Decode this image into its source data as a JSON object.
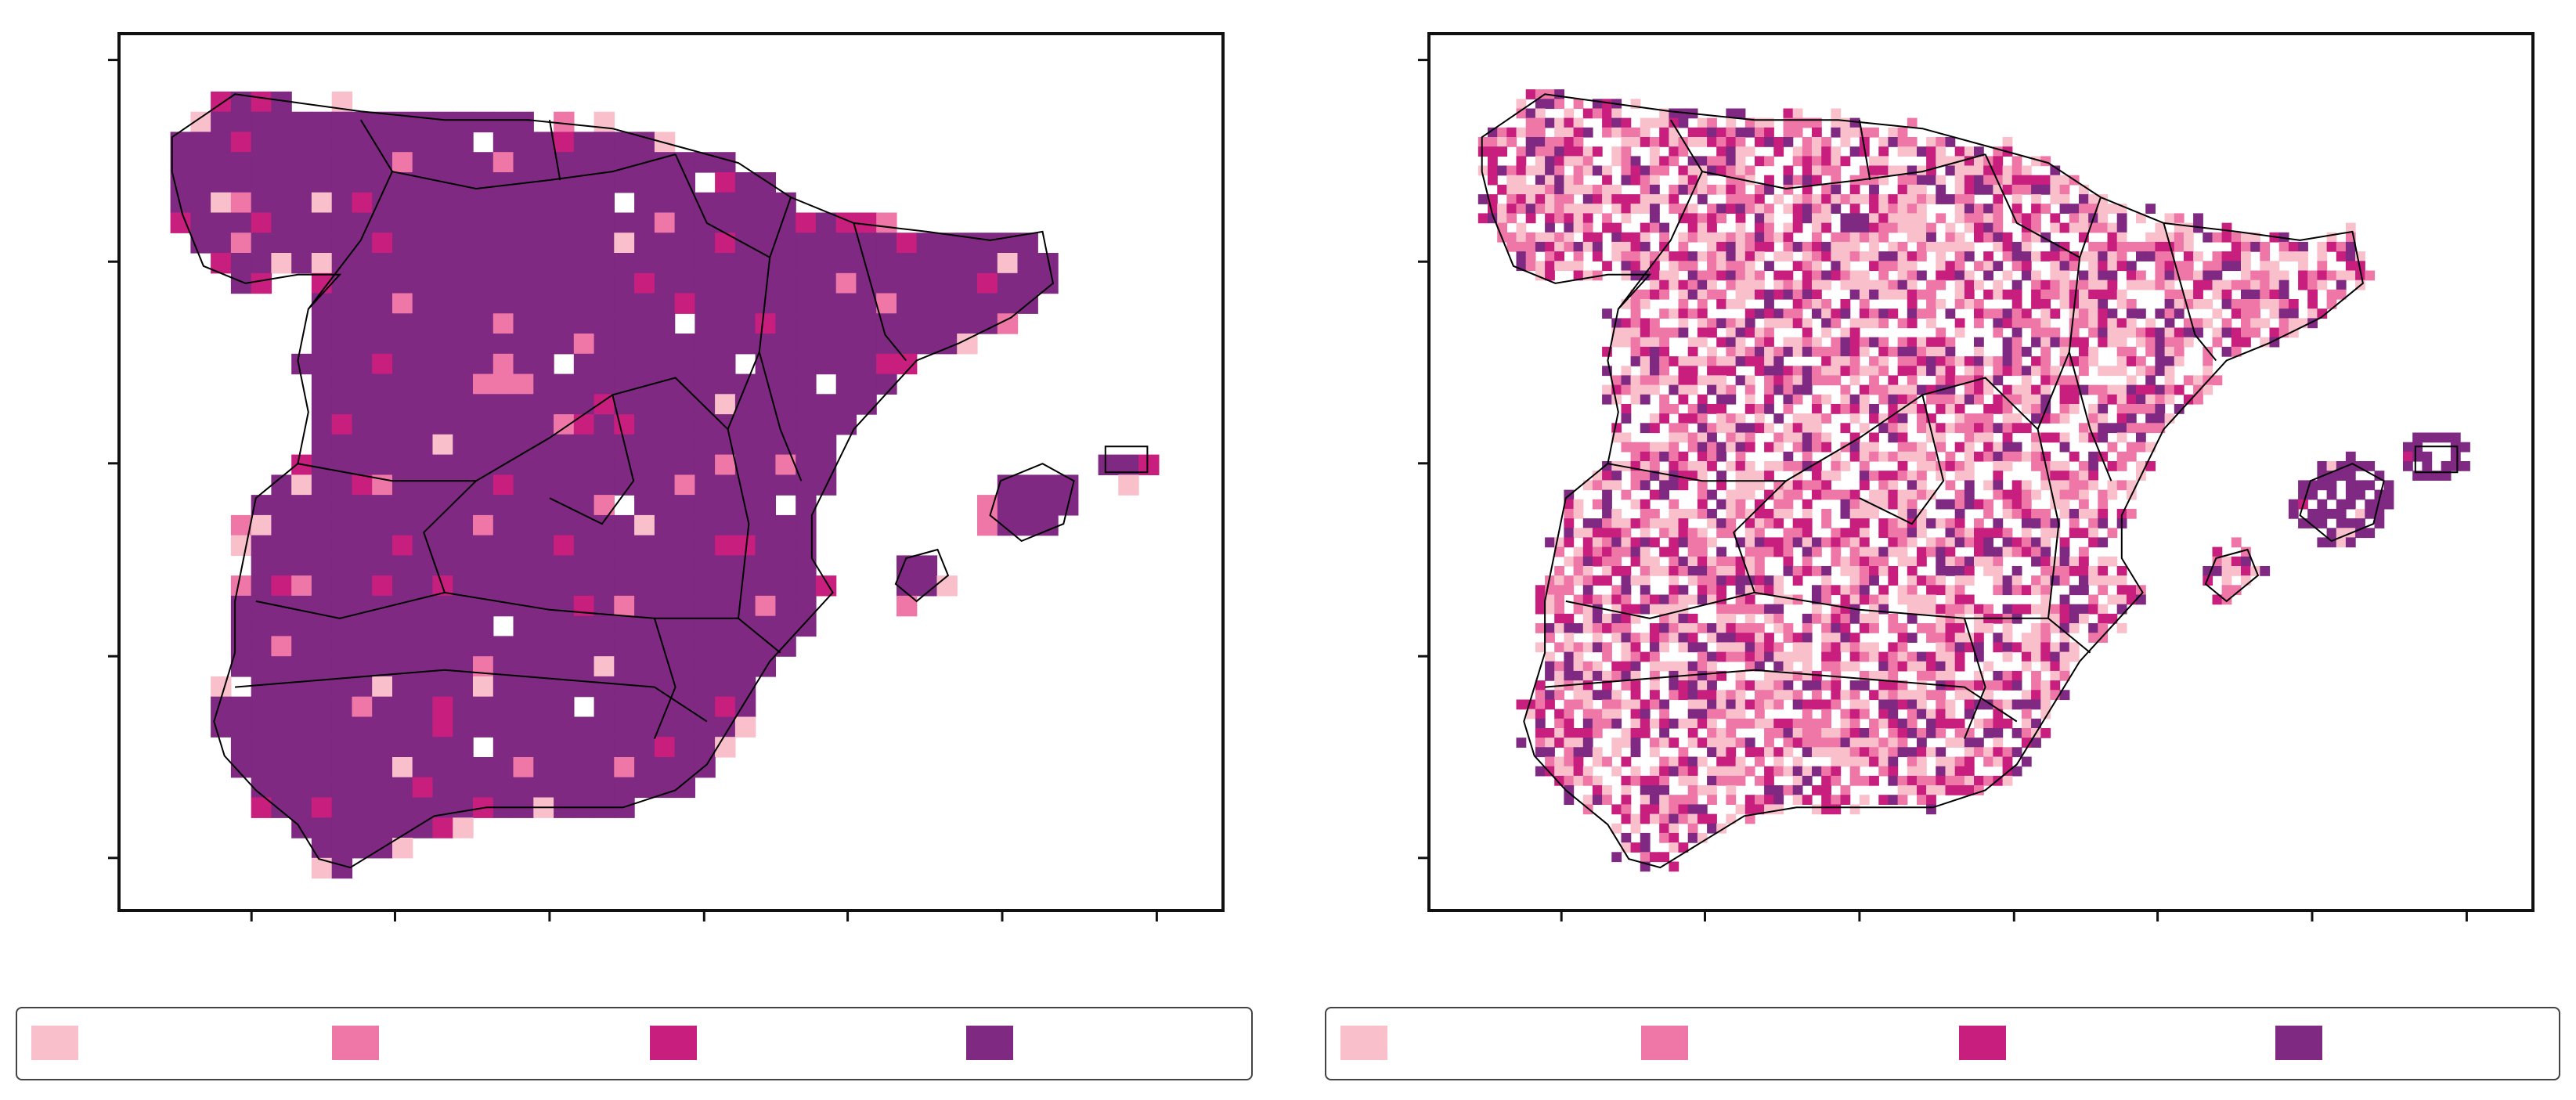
{
  "colors": {
    "class1": "#f9c0cc",
    "class2": "#ef77a7",
    "class3": "#c81e7e",
    "class4": "#7f2982",
    "border": "#000000",
    "frame": "#111111"
  },
  "maps": [
    {
      "id": "left",
      "pattern": "mostly-class4"
    },
    {
      "id": "right",
      "pattern": "mixed-classes"
    }
  ],
  "legends": [
    {
      "items": [
        {
          "color_key": "class1",
          "label": ""
        },
        {
          "color_key": "class2",
          "label": ""
        },
        {
          "color_key": "class3",
          "label": ""
        },
        {
          "color_key": "class4",
          "label": ""
        }
      ]
    },
    {
      "items": [
        {
          "color_key": "class1",
          "label": ""
        },
        {
          "color_key": "class2",
          "label": ""
        },
        {
          "color_key": "class3",
          "label": ""
        },
        {
          "color_key": "class4",
          "label": ""
        }
      ]
    }
  ]
}
